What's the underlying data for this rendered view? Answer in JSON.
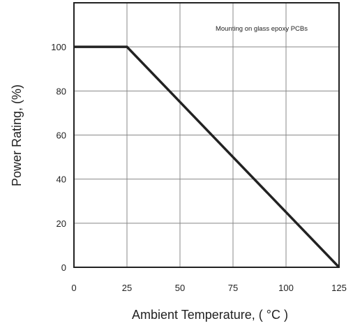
{
  "chart_data": {
    "type": "line",
    "title": "",
    "xlabel": "Ambient Temperature, ( °C )",
    "ylabel": "Power Rating, (%)",
    "annotation": "Mounting on glass epoxy PCBs",
    "xlim": [
      0,
      125
    ],
    "ylim": [
      0,
      120
    ],
    "xticks": [
      0,
      25,
      50,
      75,
      100,
      125
    ],
    "yticks": [
      0,
      20,
      40,
      60,
      80,
      100
    ],
    "grid": true,
    "series": [
      {
        "x": [
          0,
          25,
          125
        ],
        "y": [
          100,
          100,
          0
        ]
      }
    ]
  },
  "colors": {
    "line": "#222222",
    "grid": "#888888",
    "frame": "#222222"
  }
}
